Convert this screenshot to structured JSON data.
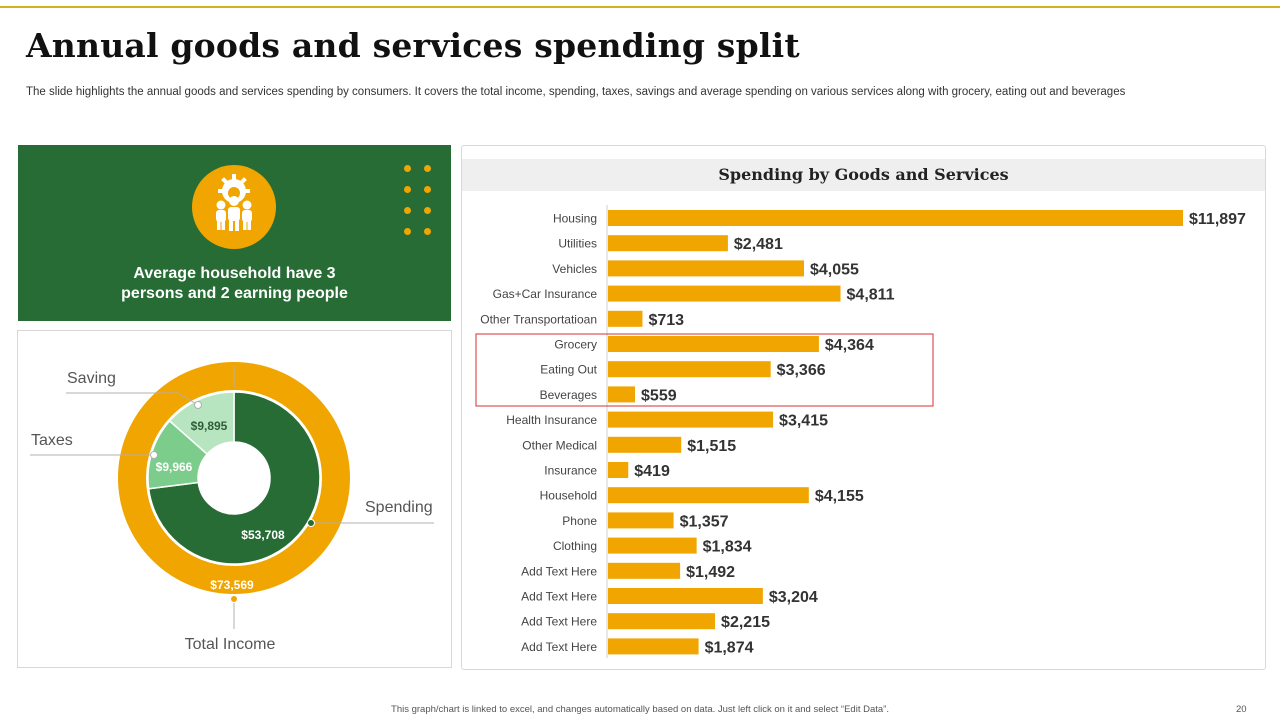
{
  "slide": {
    "title": "Annual goods and services spending split",
    "subtitle": "The slide highlights the annual goods and services spending by consumers. It covers the total income, spending, taxes, savings and average spending on various services along with grocery, eating out and beverages",
    "footer_note": "This graph/chart is linked to excel, and changes automatically based on data. Just left click on it and select “Edit Data”.",
    "page_number": "20"
  },
  "household": {
    "icon": "team-gear-icon",
    "text_line1": "Average household have 3",
    "text_line2": "persons and 2 earning people"
  },
  "colors": {
    "gold": "#f0a500",
    "dark_green": "#276c35",
    "mid_green": "#7ccd8c",
    "light_green": "#b6e5bf",
    "highlight_border": "#d32f2f"
  },
  "chart_data": [
    {
      "type": "pie",
      "title": "",
      "rings": [
        {
          "name": "outer",
          "slices": [
            {
              "label": "Total Income",
              "value": 73569,
              "value_label": "$73,569"
            }
          ]
        },
        {
          "name": "inner",
          "slices": [
            {
              "label": "Spending",
              "value": 53708,
              "value_label": "$53,708"
            },
            {
              "label": "Taxes",
              "value": 9966,
              "value_label": "$9,966"
            },
            {
              "label": "Saving",
              "value": 9895,
              "value_label": "$9,895"
            }
          ]
        }
      ]
    },
    {
      "type": "bar",
      "orientation": "horizontal",
      "title": "Spending by Goods and Services",
      "categories": [
        "Housing",
        "Utilities",
        "Vehicles",
        "Gas+Car Insurance",
        "Other Transportatioan",
        "Grocery",
        "Eating Out",
        "Beverages",
        "Health Insurance",
        "Other Medical",
        "Insurance",
        "Household",
        "Phone",
        "Clothing",
        "Add Text Here",
        "Add Text Here",
        "Add Text Here",
        "Add Text Here"
      ],
      "values": [
        11897,
        2481,
        4055,
        4811,
        713,
        4364,
        3366,
        559,
        3415,
        1515,
        419,
        4155,
        1357,
        1834,
        1492,
        3204,
        2215,
        1874
      ],
      "value_labels": [
        "$11,897",
        "$2,481",
        "$4,055",
        "$4,811",
        "$713",
        "$4,364",
        "$3,366",
        "$559",
        "$3,415",
        "$1,515",
        "$419",
        "$4,155",
        "$1,357",
        "$1,834",
        "$1,492",
        "$3,204",
        "$2,215",
        "$1,874"
      ],
      "highlighted_categories": [
        "Grocery",
        "Eating Out",
        "Beverages"
      ],
      "xlim": [
        0,
        11897
      ],
      "grid": false,
      "legend": "none"
    }
  ]
}
